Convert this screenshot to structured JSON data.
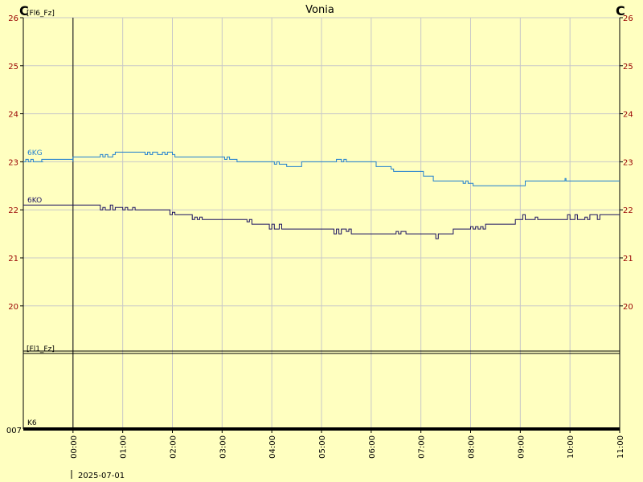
{
  "chart_data": {
    "type": "line",
    "title": "Vonia",
    "left_unit": "C",
    "right_unit": "C",
    "upper_panel": {
      "label": "[Fl6_Fz]",
      "ylim": [
        19,
        26
      ],
      "y_ticks": [
        "20",
        "21",
        "22",
        "23",
        "24",
        "25",
        "26"
      ],
      "series": [
        {
          "name": "6KG",
          "color": "#1f7fcf",
          "points": [
            [
              -1.0,
              23.0
            ],
            [
              -0.95,
              23.05
            ],
            [
              -0.9,
              23.0
            ],
            [
              -0.85,
              23.05
            ],
            [
              -0.8,
              23.0
            ],
            [
              -0.6,
              23.0
            ],
            [
              -0.63,
              23.05
            ],
            [
              0.0,
              23.0
            ],
            [
              0.0,
              23.1
            ],
            [
              0.5,
              23.1
            ],
            [
              0.55,
              23.15
            ],
            [
              0.6,
              23.1
            ],
            [
              0.65,
              23.15
            ],
            [
              0.7,
              23.1
            ],
            [
              0.8,
              23.15
            ],
            [
              0.85,
              23.2
            ],
            [
              1.4,
              23.2
            ],
            [
              1.45,
              23.15
            ],
            [
              1.5,
              23.2
            ],
            [
              1.55,
              23.15
            ],
            [
              1.6,
              23.2
            ],
            [
              1.7,
              23.15
            ],
            [
              1.8,
              23.2
            ],
            [
              1.85,
              23.15
            ],
            [
              1.9,
              23.2
            ],
            [
              2.0,
              23.15
            ],
            [
              2.05,
              23.1
            ],
            [
              3.0,
              23.1
            ],
            [
              3.05,
              23.05
            ],
            [
              3.1,
              23.1
            ],
            [
              3.15,
              23.05
            ],
            [
              3.25,
              23.05
            ],
            [
              3.3,
              23.0
            ],
            [
              4.0,
              23.0
            ],
            [
              4.05,
              22.95
            ],
            [
              4.1,
              23.0
            ],
            [
              4.15,
              22.95
            ],
            [
              4.2,
              22.95
            ],
            [
              4.3,
              22.9
            ],
            [
              4.55,
              22.9
            ],
            [
              4.6,
              23.0
            ],
            [
              5.25,
              23.0
            ],
            [
              5.3,
              23.05
            ],
            [
              5.4,
              23.0
            ],
            [
              5.45,
              23.05
            ],
            [
              5.5,
              23.0
            ],
            [
              6.05,
              23.0
            ],
            [
              6.1,
              22.9
            ],
            [
              6.35,
              22.9
            ],
            [
              6.4,
              22.85
            ],
            [
              6.45,
              22.8
            ],
            [
              7.0,
              22.8
            ],
            [
              7.05,
              22.7
            ],
            [
              7.2,
              22.7
            ],
            [
              7.25,
              22.6
            ],
            [
              7.8,
              22.6
            ],
            [
              7.85,
              22.55
            ],
            [
              7.9,
              22.6
            ],
            [
              7.95,
              22.55
            ],
            [
              8.05,
              22.5
            ],
            [
              9.05,
              22.5
            ],
            [
              9.1,
              22.6
            ],
            [
              9.85,
              22.6
            ],
            [
              9.9,
              22.65
            ],
            [
              9.92,
              22.6
            ],
            [
              11.0,
              22.6
            ]
          ]
        },
        {
          "name": "6KO",
          "color": "#1a1060",
          "points": [
            [
              -1.0,
              22.1
            ],
            [
              0.5,
              22.1
            ],
            [
              0.55,
              22.0
            ],
            [
              0.6,
              22.05
            ],
            [
              0.65,
              22.0
            ],
            [
              0.75,
              22.1
            ],
            [
              0.8,
              22.0
            ],
            [
              0.85,
              22.05
            ],
            [
              1.0,
              22.0
            ],
            [
              1.05,
              22.05
            ],
            [
              1.1,
              22.0
            ],
            [
              1.2,
              22.05
            ],
            [
              1.25,
              22.0
            ],
            [
              1.9,
              22.0
            ],
            [
              1.95,
              21.9
            ],
            [
              2.0,
              21.95
            ],
            [
              2.05,
              21.9
            ],
            [
              2.35,
              21.9
            ],
            [
              2.4,
              21.8
            ],
            [
              2.45,
              21.85
            ],
            [
              2.5,
              21.8
            ],
            [
              2.55,
              21.85
            ],
            [
              2.6,
              21.8
            ],
            [
              3.45,
              21.8
            ],
            [
              3.5,
              21.75
            ],
            [
              3.55,
              21.8
            ],
            [
              3.6,
              21.7
            ],
            [
              3.9,
              21.7
            ],
            [
              3.95,
              21.6
            ],
            [
              4.0,
              21.7
            ],
            [
              4.05,
              21.6
            ],
            [
              4.15,
              21.7
            ],
            [
              4.2,
              21.6
            ],
            [
              5.2,
              21.6
            ],
            [
              5.25,
              21.5
            ],
            [
              5.3,
              21.6
            ],
            [
              5.35,
              21.5
            ],
            [
              5.4,
              21.6
            ],
            [
              5.5,
              21.55
            ],
            [
              5.55,
              21.6
            ],
            [
              5.6,
              21.5
            ],
            [
              6.45,
              21.5
            ],
            [
              6.5,
              21.55
            ],
            [
              6.55,
              21.5
            ],
            [
              6.6,
              21.55
            ],
            [
              6.7,
              21.5
            ],
            [
              7.25,
              21.5
            ],
            [
              7.3,
              21.4
            ],
            [
              7.35,
              21.5
            ],
            [
              7.6,
              21.5
            ],
            [
              7.65,
              21.6
            ],
            [
              7.95,
              21.6
            ],
            [
              8.0,
              21.65
            ],
            [
              8.05,
              21.6
            ],
            [
              8.1,
              21.65
            ],
            [
              8.15,
              21.6
            ],
            [
              8.2,
              21.65
            ],
            [
              8.25,
              21.6
            ],
            [
              8.3,
              21.7
            ],
            [
              8.85,
              21.7
            ],
            [
              8.9,
              21.8
            ],
            [
              9.0,
              21.8
            ],
            [
              9.05,
              21.9
            ],
            [
              9.1,
              21.8
            ],
            [
              9.3,
              21.85
            ],
            [
              9.35,
              21.8
            ],
            [
              9.9,
              21.8
            ],
            [
              9.95,
              21.9
            ],
            [
              10.0,
              21.8
            ],
            [
              10.1,
              21.9
            ],
            [
              10.15,
              21.8
            ],
            [
              10.3,
              21.85
            ],
            [
              10.35,
              21.8
            ],
            [
              10.4,
              21.9
            ],
            [
              10.5,
              21.9
            ],
            [
              10.55,
              21.8
            ],
            [
              10.6,
              21.9
            ],
            [
              11.0,
              21.9
            ]
          ]
        }
      ]
    },
    "lower_panel": {
      "label": "[Fl1_Fz]",
      "y_tick": "007",
      "series_label": "K6"
    },
    "x_axis": {
      "range": [
        -1.0,
        11.0
      ],
      "tick_labels": [
        "00:00",
        "01:00",
        "02:00",
        "03:00",
        "04:00",
        "05:00",
        "06:00",
        "07:00",
        "08:00",
        "09:00",
        "10:00",
        "11:00"
      ],
      "date_label": "2025-07-01"
    },
    "grid": true,
    "colors": {
      "background": "#ffffc0",
      "grid": "#c8c8c8",
      "tick_text_y": "#990000",
      "axis": "#000000"
    }
  }
}
